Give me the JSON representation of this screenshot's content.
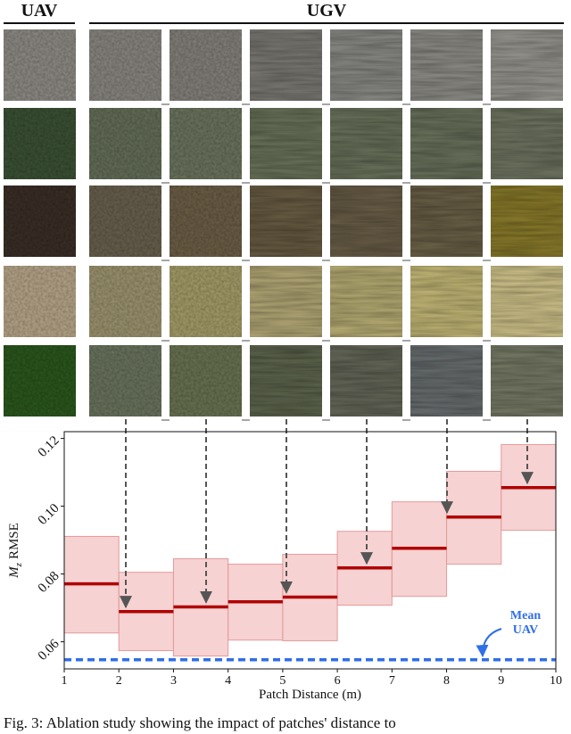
{
  "header": {
    "left": "UAV",
    "right": "UGV"
  },
  "chart_data": {
    "type": "box",
    "x_label": "Patch Distance (m)",
    "y_label_symbol": "M",
    "y_label_subscript": "z",
    "y_label": "RMSE",
    "bins": [
      1,
      2,
      3,
      4,
      5,
      6,
      7,
      8,
      9,
      10
    ],
    "series": [
      {
        "name": "median",
        "color": "#b00000",
        "values": [
          0.0771,
          0.0689,
          0.0703,
          0.0718,
          0.0732,
          0.0818,
          0.0876,
          0.0968,
          0.1055
        ]
      },
      {
        "name": "low",
        "color": "#f4c7c7",
        "values": [
          0.0626,
          0.0574,
          0.0558,
          0.0605,
          0.0603,
          0.0708,
          0.0734,
          0.0829,
          0.0929
        ]
      },
      {
        "name": "high",
        "color": "#f4c7c7",
        "values": [
          0.0911,
          0.0805,
          0.0845,
          0.0829,
          0.0858,
          0.0926,
          0.1013,
          0.1103,
          0.1182
        ]
      }
    ],
    "reference": {
      "lines": [
        "Mean",
        "UAV"
      ],
      "value": 0.0547,
      "color": "#2f6fe8"
    },
    "xlim": [
      1,
      10
    ],
    "ylim": [
      0.052,
      0.122
    ],
    "xticks": [
      1,
      2,
      3,
      4,
      5,
      6,
      7,
      8,
      9,
      10
    ],
    "yticks": [
      0.06,
      0.08,
      {
        "value": 0.1,
        "label": "0.10"
      },
      0.12
    ]
  },
  "caption": "Fig. 3: Ablation study showing the impact of patches' distance to"
}
